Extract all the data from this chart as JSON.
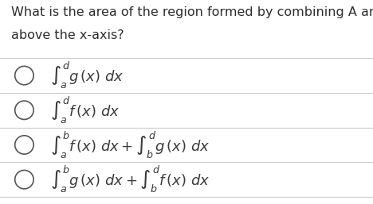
{
  "title_line1": "What is the area of the region formed by combining A and B",
  "title_line2": "above the x-axis?",
  "bg_color": "#ffffff",
  "text_color": "#2d2d2d",
  "option_color": "#3a3a3a",
  "circle_color": "#555555",
  "divider_color": "#cccccc",
  "options": [
    "$\\int_a^d g\\,(x)\\ dx$",
    "$\\int_a^d f\\,(x)\\ dx$",
    "$\\int_a^b f\\,(x)\\ dx + \\int_b^d g\\,(x)\\ dx$",
    "$\\int_a^b g\\,(x)\\ dx + \\int_b^d f\\,(x)\\ dx$"
  ],
  "title_fontsize": 11.5,
  "option_fontsize": 13,
  "fig_width": 4.68,
  "fig_height": 2.57
}
